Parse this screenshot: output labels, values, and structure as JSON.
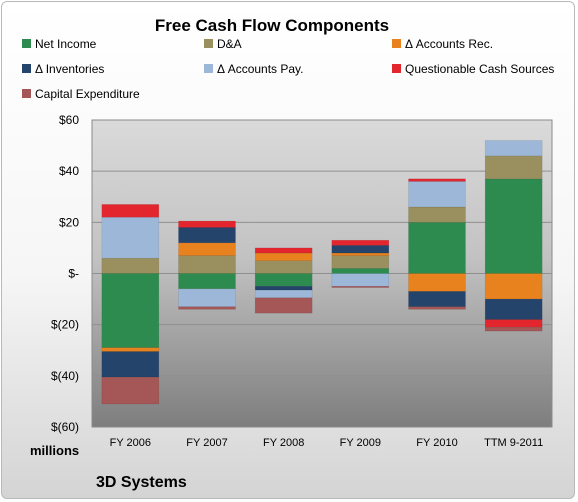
{
  "chart_data": {
    "type": "bar",
    "stacked": true,
    "title": "Free Cash Flow Components",
    "ylabel": "millions",
    "xlabel": "",
    "footer": "3D Systems",
    "categories": [
      "FY 2006",
      "FY 2007",
      "FY 2008",
      "FY 2009",
      "FY 2010",
      "TTM 9-2011"
    ],
    "ylim": [
      -60,
      60
    ],
    "yticks": [
      60,
      40,
      20,
      0,
      -20,
      -40,
      -60
    ],
    "ytick_labels": [
      "$60",
      "$40",
      "$20",
      "$-",
      "$(20)",
      "$(40)",
      "$(60)"
    ],
    "grid": true,
    "legend_position": "top",
    "series": [
      {
        "name": "Net Income",
        "color": "#2e8b4f",
        "values": [
          -29,
          -6,
          -5,
          2,
          20,
          37
        ]
      },
      {
        "name": "D&A",
        "color": "#9a8f5f",
        "values": [
          6,
          7,
          5,
          5,
          6,
          9
        ]
      },
      {
        "name": "Δ Accounts Rec.",
        "color": "#e8821e",
        "values": [
          -1.5,
          5,
          3,
          1,
          -7,
          -10
        ]
      },
      {
        "name": "Δ Inventories",
        "color": "#24446c",
        "values": [
          -10,
          6,
          -1.5,
          3,
          -6,
          -8
        ]
      },
      {
        "name": "Δ Accounts Pay.",
        "color": "#9db7d8",
        "values": [
          16,
          -7,
          -3,
          -5,
          10,
          6
        ]
      },
      {
        "name": "Questionable Cash Sources",
        "color": "#e3262e",
        "values": [
          5,
          2.5,
          2,
          2,
          1,
          -3
        ]
      },
      {
        "name": "Capital Expenditure",
        "color": "#a55656",
        "values": [
          -10.5,
          -1,
          -6,
          -0.5,
          -1,
          -1.5
        ]
      }
    ]
  }
}
